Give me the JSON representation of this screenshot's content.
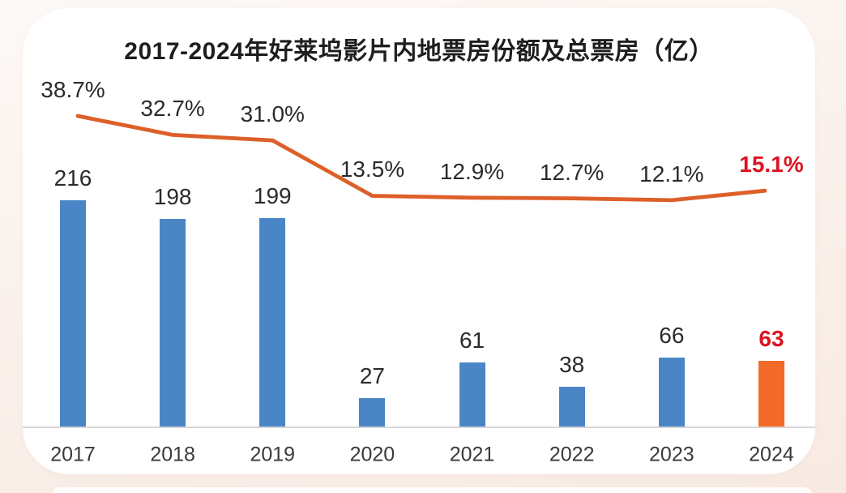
{
  "chart_data": {
    "type": "combo-bar-line",
    "title": "2017-2024年好莱坞影片内地票房份额及总票房（亿）",
    "categories": [
      "2017",
      "2018",
      "2019",
      "2020",
      "2021",
      "2022",
      "2023",
      "2024"
    ],
    "series": [
      {
        "name": "总票房（亿）",
        "type": "bar",
        "values": [
          216,
          198,
          199,
          27,
          61,
          38,
          66,
          63
        ],
        "labels": [
          "216",
          "198",
          "199",
          "27",
          "61",
          "38",
          "66",
          "63"
        ]
      },
      {
        "name": "内地票房份额",
        "type": "line",
        "values": [
          38.7,
          32.7,
          31.0,
          13.5,
          12.9,
          12.7,
          12.1,
          15.1
        ],
        "labels": [
          "38.7%",
          "32.7%",
          "31.0%",
          "13.5%",
          "12.9%",
          "12.7%",
          "12.1%",
          "15.1%"
        ]
      }
    ],
    "highlight_index": 7,
    "bar_axis_range": [
      0,
      400
    ],
    "grid": "off",
    "legend_position": "none",
    "notes": "only x-axis baseline visible; data labels above bars and above line; 2024 values highlighted"
  },
  "colors": {
    "bar_blue": "#4A86C6",
    "bar_highlight_orange": "#F16A28",
    "line_orange": "#DD5F29",
    "highlight_red": "#DC1422",
    "label_dark": "#2B2B2B",
    "axis_gray": "#D6D6D6",
    "card_white": "#FFFFFF",
    "page_pink": "#F8EAE2"
  }
}
